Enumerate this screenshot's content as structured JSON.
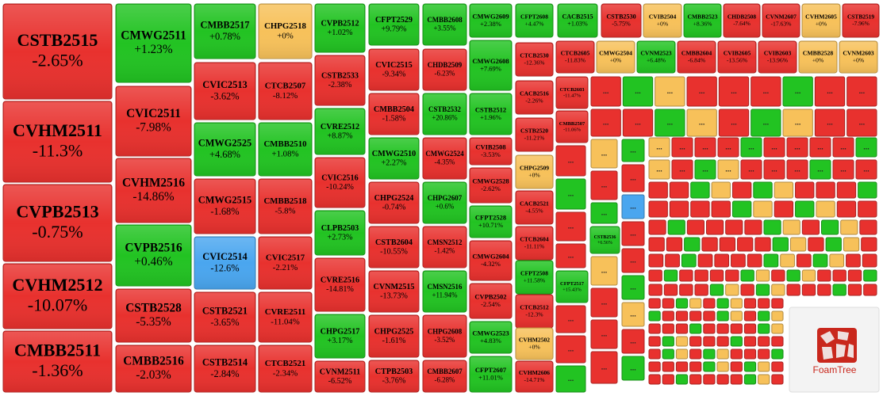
{
  "tiles": [
    {
      "code": "CSTB2515",
      "change": "-2.65%",
      "color": "#e8312e"
    },
    {
      "code": "CVHM2511",
      "change": "-11.3%",
      "color": "#e8312e"
    },
    {
      "code": "CVPB2513",
      "change": "-0.75%",
      "color": "#e8312e"
    },
    {
      "code": "CVHM2512",
      "change": "-10.07%",
      "color": "#e8312e"
    },
    {
      "code": "CMBB2511",
      "change": "-1.36%",
      "color": "#e8312e"
    },
    {
      "code": "CMWG2511",
      "change": "+1.23%",
      "color": "#22c322"
    },
    {
      "code": "CVIC2511",
      "change": "-7.98%",
      "color": "#e8312e"
    },
    {
      "code": "CVHM2516",
      "change": "-14.86%",
      "color": "#e8312e"
    },
    {
      "code": "CVPB2516",
      "change": "+0.46%",
      "color": "#22c322"
    },
    {
      "code": "CSTB2528",
      "change": "-5.35%",
      "color": "#e8312e"
    },
    {
      "code": "CMBB2516",
      "change": "-2.03%",
      "color": "#e8312e"
    },
    {
      "code": "CMBB2517",
      "change": "+0.78%",
      "color": "#22c322"
    },
    {
      "code": "CVIC2513",
      "change": "-3.62%",
      "color": "#e8312e"
    },
    {
      "code": "CMWG2525",
      "change": "+4.68%",
      "color": "#22c322"
    },
    {
      "code": "CMWG2515",
      "change": "-1.68%",
      "color": "#e8312e"
    },
    {
      "code": "CVIC2514",
      "change": "-12.6%",
      "color": "#4aa6ef"
    },
    {
      "code": "CSTB2521",
      "change": "-3.65%",
      "color": "#e8312e"
    },
    {
      "code": "CSTB2514",
      "change": "-2.84%",
      "color": "#e8312e"
    },
    {
      "code": "CHPG2518",
      "change": "+0%",
      "color": "#f7c15a"
    },
    {
      "code": "CTCB2507",
      "change": "-8.12%",
      "color": "#e8312e"
    },
    {
      "code": "CMBB2510",
      "change": "+1.08%",
      "color": "#22c322"
    },
    {
      "code": "CMBB2518",
      "change": "-5.8%",
      "color": "#e8312e"
    },
    {
      "code": "CVIC2517",
      "change": "-2.21%",
      "color": "#e8312e"
    },
    {
      "code": "CVRE2511",
      "change": "-11.04%",
      "color": "#e8312e"
    },
    {
      "code": "CTCB2521",
      "change": "-2.34%",
      "color": "#e8312e"
    },
    {
      "code": "CVPB2512",
      "change": "+1.02%",
      "color": "#22c322"
    },
    {
      "code": "CSTB2533",
      "change": "-2.38%",
      "color": "#e8312e"
    },
    {
      "code": "CVRE2512",
      "change": "+8.87%",
      "color": "#22c322"
    },
    {
      "code": "CVIC2516",
      "change": "-10.24%",
      "color": "#e8312e"
    },
    {
      "code": "CLPB2503",
      "change": "+2.73%",
      "color": "#22c322"
    },
    {
      "code": "CVRE2516",
      "change": "-14.81%",
      "color": "#e8312e"
    },
    {
      "code": "CHPG2517",
      "change": "+3.17%",
      "color": "#22c322"
    },
    {
      "code": "CVNM2511",
      "change": "-6.52%",
      "color": "#e8312e"
    },
    {
      "code": "CFPT2529",
      "change": "+9.79%",
      "color": "#22c322"
    },
    {
      "code": "CVIC2515",
      "change": "-9.34%",
      "color": "#e8312e"
    },
    {
      "code": "CMBB2504",
      "change": "-1.58%",
      "color": "#e8312e"
    },
    {
      "code": "CMWG2510",
      "change": "+2.27%",
      "color": "#22c322"
    },
    {
      "code": "CHPG2524",
      "change": "-0.74%",
      "color": "#e8312e"
    },
    {
      "code": "CSTB2604",
      "change": "-10.55%",
      "color": "#e8312e"
    },
    {
      "code": "CVNM2515",
      "change": "-13.73%",
      "color": "#e8312e"
    },
    {
      "code": "CHPG2525",
      "change": "-1.61%",
      "color": "#e8312e"
    },
    {
      "code": "CTPB2503",
      "change": "-3.76%",
      "color": "#e8312e"
    },
    {
      "code": "CMBB2608",
      "change": "+3.55%",
      "color": "#22c322"
    },
    {
      "code": "CHDB2509",
      "change": "-6.23%",
      "color": "#e8312e"
    },
    {
      "code": "CSTB2532",
      "change": "+20.86%",
      "color": "#22c322"
    },
    {
      "code": "CMWG2524",
      "change": "-4.35%",
      "color": "#e8312e"
    },
    {
      "code": "CHPG2607",
      "change": "+0.6%",
      "color": "#22c322"
    },
    {
      "code": "CMSN2512",
      "change": "-1.42%",
      "color": "#e8312e"
    },
    {
      "code": "CMSN2516",
      "change": "+11.94%",
      "color": "#22c322"
    },
    {
      "code": "CHPG2608",
      "change": "-3.52%",
      "color": "#e8312e"
    },
    {
      "code": "CMBB2607",
      "change": "-6.28%",
      "color": "#e8312e"
    },
    {
      "code": "CMWG2609",
      "change": "+2.38%",
      "color": "#22c322"
    },
    {
      "code": "CMWG2608",
      "change": "+7.69%",
      "color": "#22c322"
    },
    {
      "code": "CSTB2512",
      "change": "+1.96%",
      "color": "#22c322"
    },
    {
      "code": "CVIB2508",
      "change": "-3.53%",
      "color": "#e8312e"
    },
    {
      "code": "CMWG2528",
      "change": "-2.62%",
      "color": "#e8312e"
    },
    {
      "code": "CFPT2528",
      "change": "+10.71%",
      "color": "#22c322"
    },
    {
      "code": "CMWG2604",
      "change": "-4.32%",
      "color": "#e8312e"
    },
    {
      "code": "CVPB2502",
      "change": "-2.54%",
      "color": "#e8312e"
    },
    {
      "code": "CMWG2523",
      "change": "+4.83%",
      "color": "#22c322"
    },
    {
      "code": "CFPT2607",
      "change": "+11.01%",
      "color": "#22c322"
    },
    {
      "code": "CFPT2608",
      "change": "+4.47%",
      "color": "#22c322"
    },
    {
      "code": "CTCB2530",
      "change": "-12.36%",
      "color": "#e8312e"
    },
    {
      "code": "CACB2516",
      "change": "-2.26%",
      "color": "#e8312e"
    },
    {
      "code": "CSTB2520",
      "change": "-11.21%",
      "color": "#e8312e"
    },
    {
      "code": "CHPG2509",
      "change": "+0%",
      "color": "#f7c15a"
    },
    {
      "code": "CACB2521",
      "change": "-4.55%",
      "color": "#e8312e"
    },
    {
      "code": "CTCB2604",
      "change": "-11.11%",
      "color": "#e8312e"
    },
    {
      "code": "CFPT2508",
      "change": "+11.58%",
      "color": "#22c322"
    },
    {
      "code": "CTCB2512",
      "change": "-12.3%",
      "color": "#e8312e"
    },
    {
      "code": "CVHM2502",
      "change": "+0%",
      "color": "#f7c15a"
    },
    {
      "code": "CVHM2606",
      "change": "-14.71%",
      "color": "#e8312e"
    },
    {
      "code": "CACB2515",
      "change": "+1.03%",
      "color": "#22c322"
    },
    {
      "code": "CSTB2530",
      "change": "-5.75%",
      "color": "#e8312e"
    },
    {
      "code": "CVIB2504",
      "change": "+0%",
      "color": "#f7c15a"
    },
    {
      "code": "CMBB2523",
      "change": "+8.36%",
      "color": "#22c322"
    },
    {
      "code": "CHDB2508",
      "change": "-7.64%",
      "color": "#e8312e"
    },
    {
      "code": "CVNM2607",
      "change": "-17.63%",
      "color": "#e8312e"
    },
    {
      "code": "CVHM2605",
      "change": "+0%",
      "color": "#f7c15a"
    },
    {
      "code": "CSTB2519",
      "change": "-7.96%",
      "color": "#e8312e"
    },
    {
      "code": "CTCB2605",
      "change": "-11.83%",
      "color": "#e8312e"
    },
    {
      "code": "CMWG2504",
      "change": "+0%",
      "color": "#f7c15a"
    },
    {
      "code": "CVNM2523",
      "change": "+6.48%",
      "color": "#22c322"
    },
    {
      "code": "CMBB2604",
      "change": "-6.84%",
      "color": "#e8312e"
    },
    {
      "code": "CVIB2605",
      "change": "-13.56%",
      "color": "#e8312e"
    },
    {
      "code": "CVIB2603",
      "change": "-13.96%",
      "color": "#e8312e"
    },
    {
      "code": "CMBB2528",
      "change": "+0%",
      "color": "#f7c15a"
    },
    {
      "code": "CVNM2603",
      "change": "+0%",
      "color": "#f7c15a"
    },
    {
      "code": "CTCB2603",
      "change": "-11.47%",
      "color": "#e8312e"
    },
    {
      "code": "CMBB2507",
      "change": "-11.06%",
      "color": "#e8312e"
    },
    {
      "code": "CFPT2517",
      "change": "+15.43%",
      "color": "#22c322"
    },
    {
      "code": "CSTB2536",
      "change": "+6.56%",
      "color": "#22c322"
    }
  ],
  "more_label": "...",
  "logo_text": "FoamTree"
}
